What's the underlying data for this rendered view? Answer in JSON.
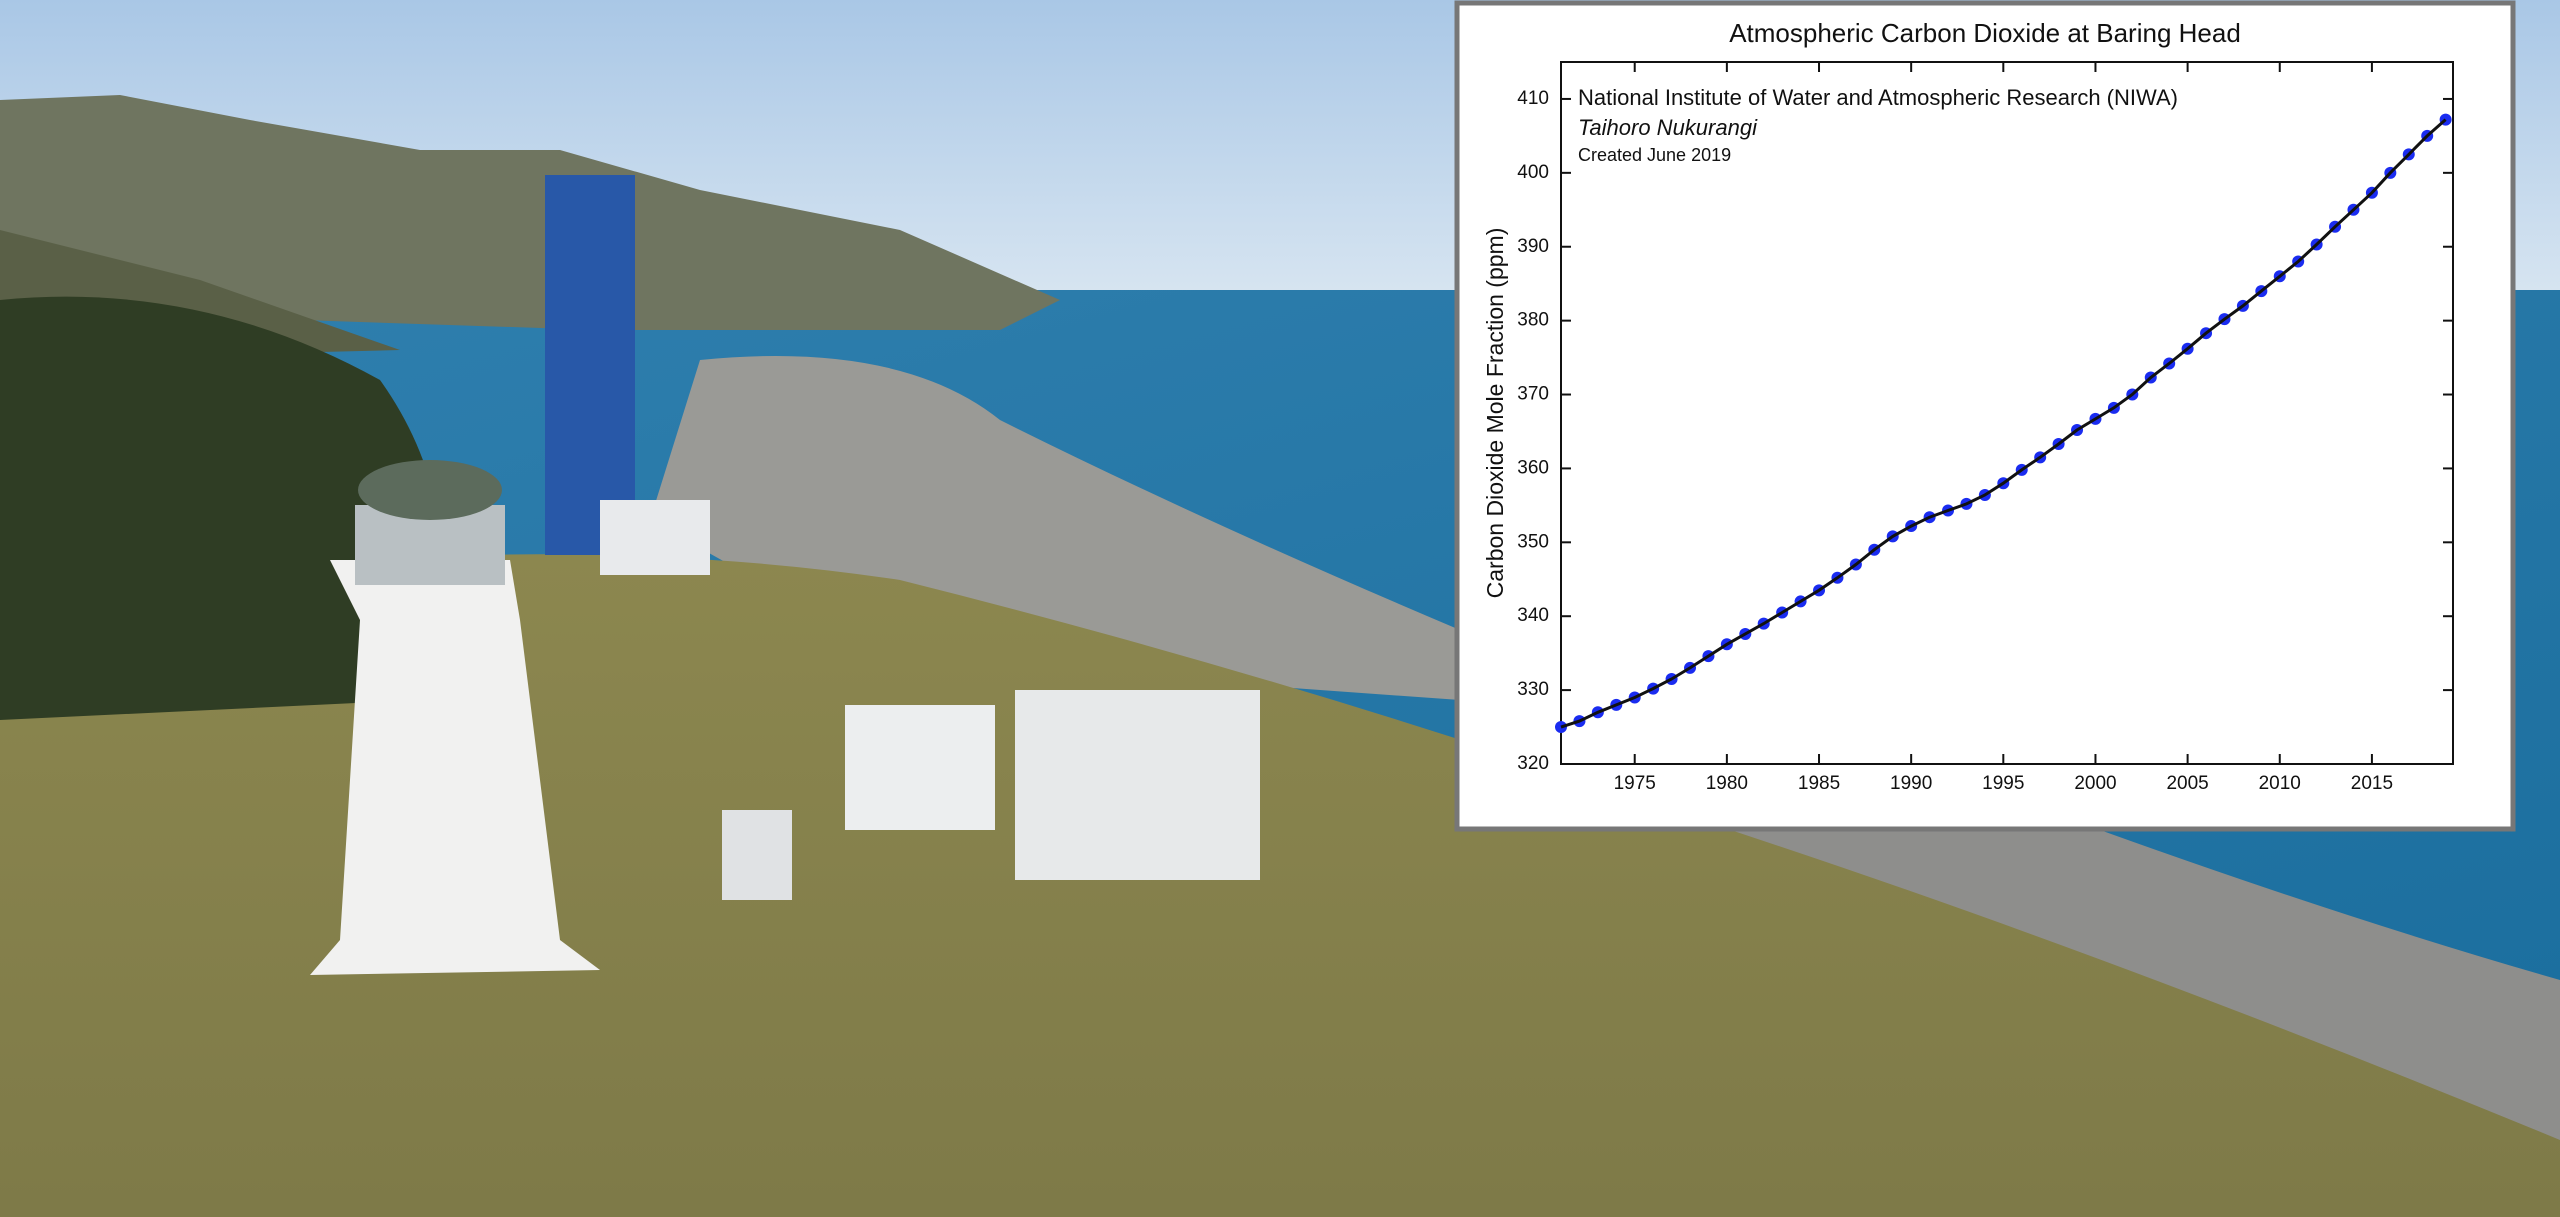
{
  "chart_data": {
    "type": "scatter",
    "title": "Atmospheric Carbon Dioxide at Baring Head",
    "annotations": [
      "National Institute of Water and Atmospheric Research (NIWA)",
      "Taihoro Nukurangi",
      "Created June 2019"
    ],
    "y_label": "Carbon Dioxide Mole Fraction (ppm)",
    "x": [
      1971,
      1972,
      1973,
      1974,
      1975,
      1976,
      1977,
      1978,
      1979,
      1980,
      1981,
      1982,
      1983,
      1984,
      1985,
      1986,
      1987,
      1988,
      1989,
      1990,
      1991,
      1992,
      1993,
      1994,
      1995,
      1996,
      1997,
      1998,
      1999,
      2000,
      2001,
      2002,
      2003,
      2004,
      2005,
      2006,
      2007,
      2008,
      2009,
      2010,
      2011,
      2012,
      2013,
      2014,
      2015,
      2016,
      2017,
      2018,
      2019
    ],
    "values": [
      325.0,
      325.8,
      327,
      328,
      329,
      330.2,
      331.5,
      333,
      334.6,
      336.2,
      337.6,
      339,
      340.5,
      342,
      343.5,
      345.2,
      347,
      349,
      350.8,
      352.2,
      353.4,
      354.3,
      355.2,
      356.4,
      358,
      359.8,
      361.5,
      363.3,
      365.2,
      366.7,
      368.2,
      370,
      372.3,
      374.2,
      376.2,
      378.3,
      380.2,
      382,
      384,
      386,
      388,
      390.3,
      392.7,
      395,
      397.3,
      400,
      402.5,
      405,
      407.2
    ],
    "color": "#1a2cf0",
    "line_color": "#111111",
    "xlim": [
      1971,
      2019.4
    ],
    "ylim": [
      320,
      415
    ],
    "xticks": [
      1975,
      1980,
      1985,
      1990,
      1995,
      2000,
      2005,
      2010,
      2015
    ],
    "yticks": [
      320,
      330,
      340,
      350,
      360,
      370,
      380,
      390,
      400,
      410
    ]
  }
}
